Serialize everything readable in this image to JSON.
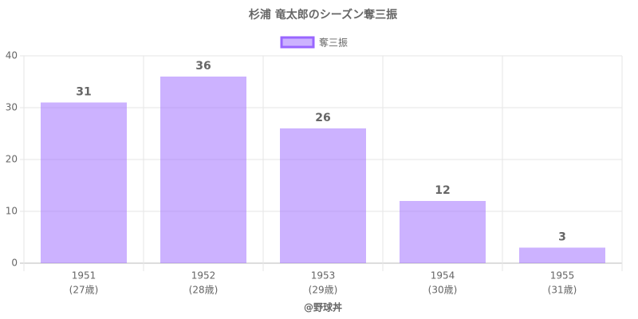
{
  "chart_data": {
    "type": "bar",
    "title": "杉浦 竜太郎のシーズン奪三振",
    "categories": [
      [
        "1951",
        "(27歳)"
      ],
      [
        "1952",
        "(28歳)"
      ],
      [
        "1953",
        "(29歳)"
      ],
      [
        "1954",
        "(30歳)"
      ],
      [
        "1955",
        "(31歳)"
      ]
    ],
    "series": [
      {
        "name": "奪三振",
        "color": "#9966ff",
        "values": [
          31,
          36,
          26,
          12,
          3
        ]
      }
    ],
    "x_label": "@野球丼",
    "ylim": [
      0,
      40
    ],
    "yticks": [
      0,
      10,
      20,
      30,
      40
    ],
    "grid": true,
    "legend": "top"
  }
}
